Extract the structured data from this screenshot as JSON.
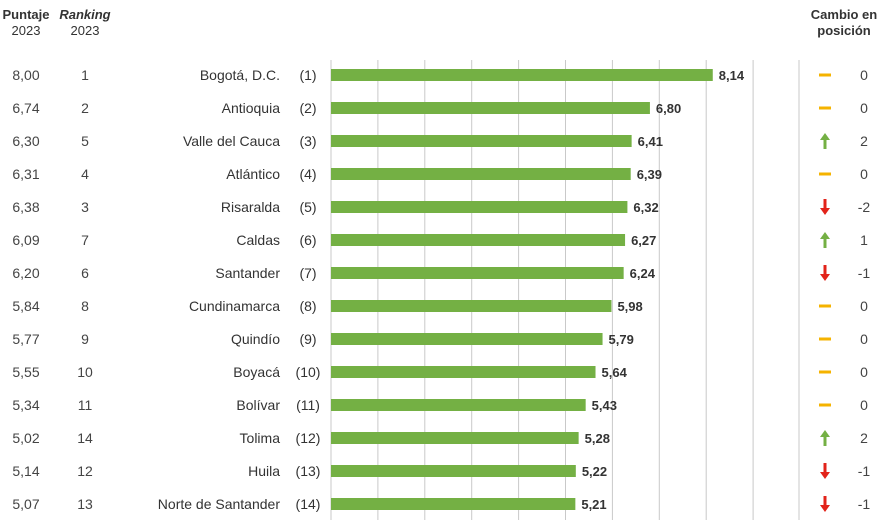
{
  "header": {
    "puntaje_label": "Puntaje",
    "puntaje_year": "2023",
    "ranking_label": "Ranking",
    "ranking_year": "2023",
    "cambio_line1": "Cambio en",
    "cambio_line2": "posición"
  },
  "colors": {
    "bar": "#74b044",
    "up": "#74b044",
    "down": "#e2231a",
    "same": "#f5b300"
  },
  "chart_data": {
    "type": "bar",
    "orientation": "horizontal",
    "xlim": [
      0,
      10
    ],
    "grid": true,
    "rows": [
      {
        "puntaje": "8,00",
        "ranking": "1",
        "name": "Bogotá, D.C.",
        "rank_label": "(1)",
        "value": 8.14,
        "value_label": "8,14",
        "change": "same",
        "change_label": "0"
      },
      {
        "puntaje": "6,74",
        "ranking": "2",
        "name": "Antioquia",
        "rank_label": "(2)",
        "value": 6.8,
        "value_label": "6,80",
        "change": "same",
        "change_label": "0"
      },
      {
        "puntaje": "6,30",
        "ranking": "5",
        "name": "Valle del Cauca",
        "rank_label": "(3)",
        "value": 6.41,
        "value_label": "6,41",
        "change": "up",
        "change_label": "2"
      },
      {
        "puntaje": "6,31",
        "ranking": "4",
        "name": "Atlántico",
        "rank_label": "(4)",
        "value": 6.39,
        "value_label": "6,39",
        "change": "same",
        "change_label": "0"
      },
      {
        "puntaje": "6,38",
        "ranking": "3",
        "name": "Risaralda",
        "rank_label": "(5)",
        "value": 6.32,
        "value_label": "6,32",
        "change": "down",
        "change_label": "-2"
      },
      {
        "puntaje": "6,09",
        "ranking": "7",
        "name": "Caldas",
        "rank_label": "(6)",
        "value": 6.27,
        "value_label": "6,27",
        "change": "up",
        "change_label": "1"
      },
      {
        "puntaje": "6,20",
        "ranking": "6",
        "name": "Santander",
        "rank_label": "(7)",
        "value": 6.24,
        "value_label": "6,24",
        "change": "down",
        "change_label": "-1"
      },
      {
        "puntaje": "5,84",
        "ranking": "8",
        "name": "Cundinamarca",
        "rank_label": "(8)",
        "value": 5.98,
        "value_label": "5,98",
        "change": "same",
        "change_label": "0"
      },
      {
        "puntaje": "5,77",
        "ranking": "9",
        "name": "Quindío",
        "rank_label": "(9)",
        "value": 5.79,
        "value_label": "5,79",
        "change": "same",
        "change_label": "0"
      },
      {
        "puntaje": "5,55",
        "ranking": "10",
        "name": "Boyacá",
        "rank_label": "(10)",
        "value": 5.64,
        "value_label": "5,64",
        "change": "same",
        "change_label": "0"
      },
      {
        "puntaje": "5,34",
        "ranking": "11",
        "name": "Bolívar",
        "rank_label": "(11)",
        "value": 5.43,
        "value_label": "5,43",
        "change": "same",
        "change_label": "0"
      },
      {
        "puntaje": "5,02",
        "ranking": "14",
        "name": "Tolima",
        "rank_label": "(12)",
        "value": 5.28,
        "value_label": "5,28",
        "change": "up",
        "change_label": "2"
      },
      {
        "puntaje": "5,14",
        "ranking": "12",
        "name": "Huila",
        "rank_label": "(13)",
        "value": 5.22,
        "value_label": "5,22",
        "change": "down",
        "change_label": "-1"
      },
      {
        "puntaje": "5,07",
        "ranking": "13",
        "name": "Norte de Santander",
        "rank_label": "(14)",
        "value": 5.21,
        "value_label": "5,21",
        "change": "down",
        "change_label": "-1"
      }
    ]
  }
}
